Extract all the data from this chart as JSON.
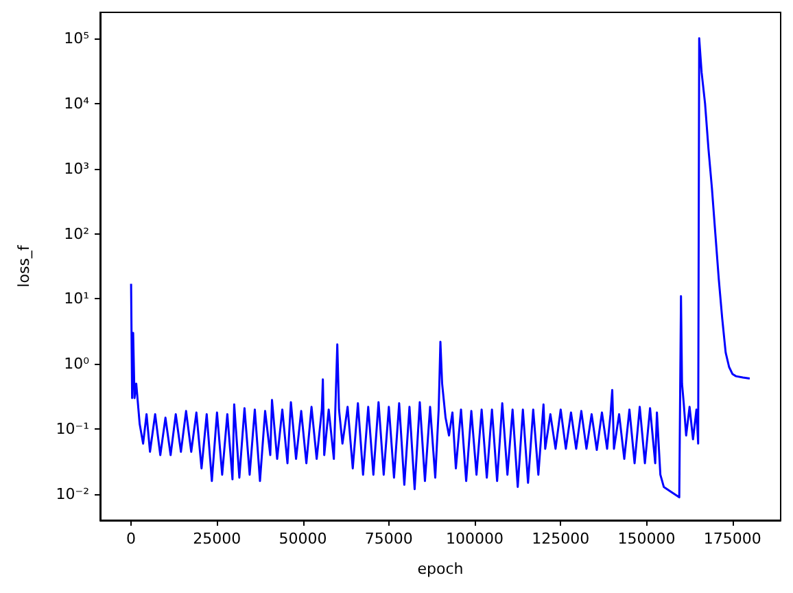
{
  "chart_data": {
    "type": "line",
    "xlabel": "epoch",
    "ylabel": "loss_f",
    "log": "y",
    "grid": false,
    "marker": "none",
    "line_style": "solid",
    "xlim": [
      -9000,
      189000
    ],
    "xticks": [
      0,
      25000,
      50000,
      75000,
      100000,
      125000,
      150000,
      175000
    ],
    "ylim": [
      0.004,
      250000
    ],
    "yticks": [
      {
        "value": 0.01,
        "label": "10⁻²"
      },
      {
        "value": 0.1,
        "label": "10⁻¹"
      },
      {
        "value": 1,
        "label": "10⁰"
      },
      {
        "value": 10,
        "label": "10¹"
      },
      {
        "value": 100,
        "label": "10²"
      },
      {
        "value": 1000,
        "label": "10³"
      },
      {
        "value": 10000,
        "label": "10⁴"
      },
      {
        "value": 100000,
        "label": "10⁵"
      }
    ],
    "x": [
      0,
      300,
      600,
      1000,
      1500,
      2500,
      3500,
      4500,
      5500,
      7000,
      8500,
      10000,
      11500,
      13000,
      14500,
      16000,
      17500,
      19000,
      20500,
      22000,
      23500,
      25000,
      26500,
      28000,
      29500,
      30000,
      31500,
      33000,
      34500,
      36000,
      37500,
      39000,
      40500,
      41000,
      42500,
      44000,
      45500,
      46500,
      48000,
      49500,
      51000,
      52500,
      54000,
      55500,
      55800,
      56200,
      57500,
      59000,
      60000,
      60500,
      61500,
      63000,
      64500,
      66000,
      67500,
      69000,
      70500,
      72000,
      73500,
      75000,
      76500,
      78000,
      79500,
      81000,
      82500,
      84000,
      85500,
      87000,
      88500,
      89500,
      90000,
      90500,
      91500,
      92500,
      93500,
      94500,
      96000,
      97500,
      99000,
      100500,
      102000,
      103500,
      105000,
      106500,
      108000,
      109500,
      111000,
      112500,
      114000,
      115500,
      117000,
      118500,
      120000,
      120500,
      122000,
      123500,
      125000,
      126500,
      128000,
      129500,
      131000,
      132500,
      134000,
      135500,
      137000,
      138500,
      139500,
      140000,
      140500,
      142000,
      143500,
      145000,
      146500,
      148000,
      149500,
      151000,
      152500,
      153000,
      154000,
      155000,
      157000,
      159500,
      160000,
      160300,
      160800,
      161500,
      162500,
      163500,
      164500,
      165000,
      165300,
      166000,
      167000,
      168000,
      169000,
      170000,
      171000,
      172000,
      173000,
      174000,
      175000,
      176000,
      178000,
      180000
    ],
    "series": [
      {
        "color": "#0000ff",
        "values": [
          17,
          0.3,
          3,
          0.3,
          0.5,
          0.12,
          0.06,
          0.17,
          0.045,
          0.17,
          0.04,
          0.15,
          0.04,
          0.17,
          0.045,
          0.19,
          0.045,
          0.18,
          0.025,
          0.17,
          0.016,
          0.18,
          0.02,
          0.17,
          0.017,
          0.24,
          0.018,
          0.21,
          0.02,
          0.2,
          0.016,
          0.19,
          0.04,
          0.28,
          0.035,
          0.2,
          0.03,
          0.26,
          0.035,
          0.19,
          0.03,
          0.22,
          0.035,
          0.2,
          0.58,
          0.04,
          0.2,
          0.035,
          2.0,
          0.2,
          0.06,
          0.22,
          0.025,
          0.25,
          0.02,
          0.22,
          0.02,
          0.26,
          0.02,
          0.22,
          0.018,
          0.25,
          0.014,
          0.22,
          0.012,
          0.26,
          0.016,
          0.22,
          0.018,
          0.2,
          2.2,
          0.5,
          0.15,
          0.08,
          0.18,
          0.025,
          0.2,
          0.016,
          0.19,
          0.02,
          0.2,
          0.018,
          0.2,
          0.016,
          0.25,
          0.02,
          0.2,
          0.013,
          0.2,
          0.015,
          0.2,
          0.02,
          0.24,
          0.05,
          0.17,
          0.05,
          0.2,
          0.05,
          0.18,
          0.05,
          0.19,
          0.05,
          0.17,
          0.048,
          0.18,
          0.05,
          0.17,
          0.4,
          0.05,
          0.17,
          0.035,
          0.2,
          0.03,
          0.22,
          0.03,
          0.21,
          0.03,
          0.18,
          0.02,
          0.013,
          0.011,
          0.009,
          11,
          0.5,
          0.25,
          0.08,
          0.22,
          0.07,
          0.2,
          0.06,
          100000,
          30000,
          10000,
          2000,
          500,
          100,
          20,
          5,
          1.5,
          0.9,
          0.7,
          0.65,
          0.62,
          0.6
        ]
      }
    ]
  }
}
